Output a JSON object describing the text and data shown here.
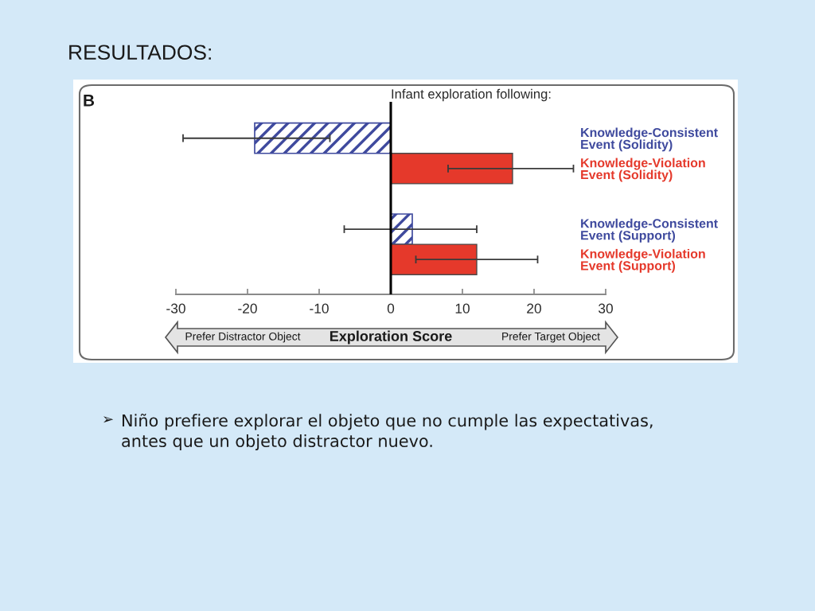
{
  "chart_data": {
    "type": "bar",
    "orientation": "horizontal",
    "title": "RESULTADOS:",
    "subtitle": "Infant exploration following:",
    "xlabel": "Exploration Score",
    "categories": [
      "Knowledge-Consistent\nEvent (Solidity)",
      "Knowledge-Violation\nEvent (Solidity)",
      null,
      "Knowledge-Consistent\nEvent (Support)",
      "Knowledge-Violation\nEvent (Support)"
    ],
    "series": [
      {
        "color": "#3f4a9e",
        "values": [
          -19,
          null,
          null,
          3,
          null
        ],
        "errors": [
          [
            -29,
            -8.5
          ],
          null,
          null,
          [
            -6.5,
            12
          ],
          null
        ]
      },
      {
        "color": "#e5392b",
        "values": [
          null,
          17,
          null,
          null,
          12
        ],
        "errors": [
          null,
          [
            8,
            25.5
          ],
          null,
          null,
          [
            3.5,
            20.5
          ]
        ]
      }
    ],
    "xlim": [
      -30,
      30
    ],
    "xticks": [
      -30,
      -20,
      -10,
      0,
      10,
      20,
      30
    ],
    "ref_lines": [
      {
        "axis": "x",
        "value": 0,
        "color": "#000000"
      }
    ],
    "annotations": [
      "B",
      "Prefer Distractor Object",
      "Prefer Target Object",
      "➢",
      "Niño prefiere explorar el objeto que no cumple las expectativas,\nantes que un objeto distractor nuevo."
    ]
  }
}
